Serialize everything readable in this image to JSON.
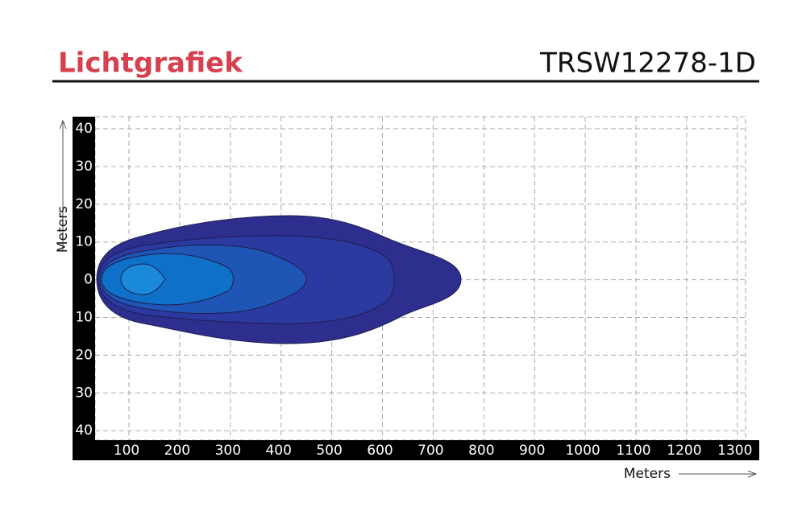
{
  "header": {
    "title": "Lichtgrafiek",
    "model": "TRSW12278-1D"
  },
  "y_axis": {
    "label": "Meters",
    "ticks": [
      "40",
      "30",
      "20",
      "10",
      "0",
      "10",
      "20",
      "30",
      "40"
    ]
  },
  "x_axis": {
    "label": "Meters",
    "ticks": [
      "100",
      "200",
      "300",
      "400",
      "500",
      "600",
      "700",
      "800",
      "900",
      "1000",
      "1100",
      "1200",
      "1300"
    ]
  }
}
